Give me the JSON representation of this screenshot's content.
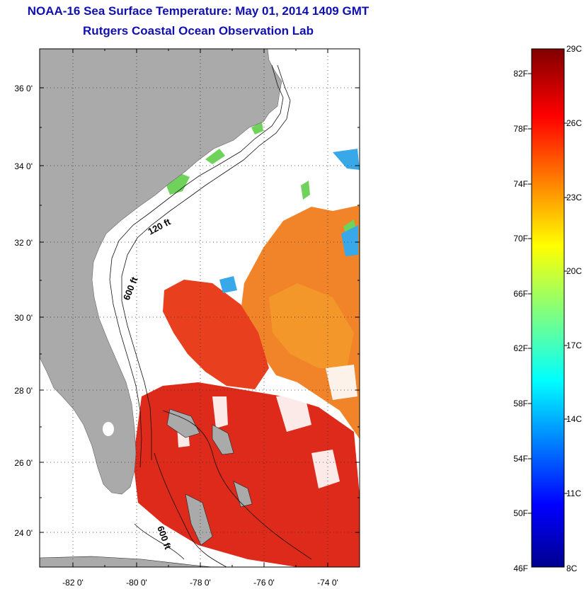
{
  "header": {
    "title": "NOAA-16 Sea Surface Temperature:  May 01, 2014 1409 GMT",
    "subtitle": "Rutgers Coastal Ocean Observation Lab"
  },
  "map": {
    "lat_ticks": [
      "36 0'",
      "34 0'",
      "32 0'",
      "30 0'",
      "28 0'",
      "26 0'",
      "24 0'"
    ],
    "lon_ticks": [
      "-82 0'",
      "-80 0'",
      "-78 0'",
      "-76 0'",
      "-74 0'"
    ],
    "lat_range": [
      23,
      37
    ],
    "lon_range": [
      -83,
      -73
    ],
    "land_color": "#aaaaaa",
    "contour_labels": [
      "120 ft",
      "600 ft",
      "600 ft"
    ]
  },
  "colorbar": {
    "fahrenheit_labels": [
      "82F",
      "78F",
      "74F",
      "70F",
      "66F",
      "62F",
      "58F",
      "54F",
      "50F",
      "46F"
    ],
    "celsius_labels": [
      "29C",
      "26C",
      "23C",
      "20C",
      "17C",
      "14C",
      "11C",
      "8C"
    ],
    "range_c": [
      8,
      29
    ],
    "colormap": "jet"
  }
}
